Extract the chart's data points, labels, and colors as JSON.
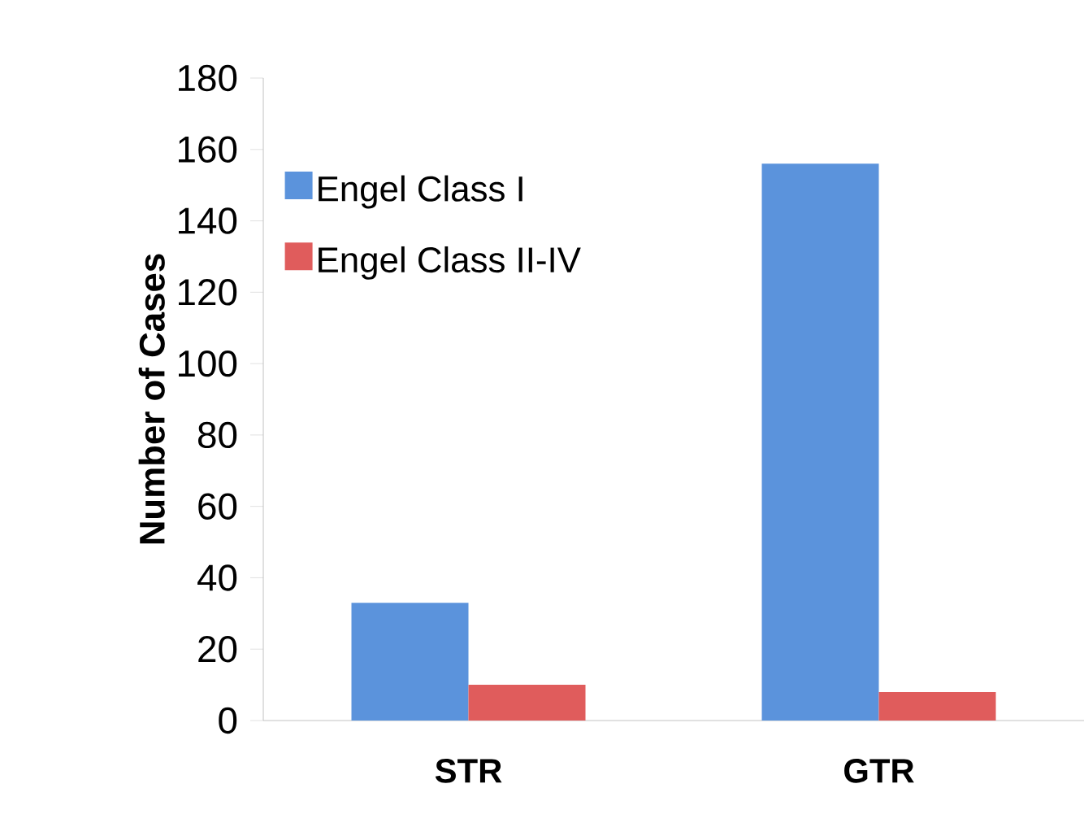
{
  "chart_data": {
    "type": "bar",
    "ylabel": "Number of Cases",
    "categories": [
      "STR",
      "GTR"
    ],
    "series": [
      {
        "name": "Engel Class I",
        "color": "#5b93dc",
        "values": [
          33,
          156
        ]
      },
      {
        "name": "Engel Class II-IV",
        "color": "#e05c5c",
        "values": [
          10,
          8
        ]
      }
    ],
    "ylim": [
      0,
      180
    ],
    "yticks": [
      0,
      20,
      40,
      60,
      80,
      100,
      120,
      140,
      160,
      180
    ],
    "grid": false,
    "legend": "top left"
  }
}
